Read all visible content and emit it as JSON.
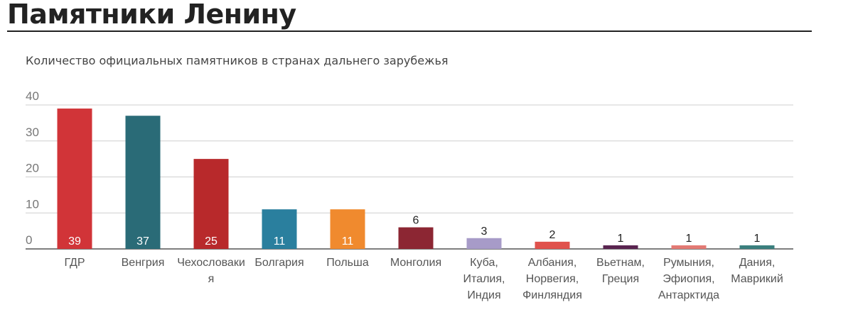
{
  "header": {
    "title": "Памятники Ленину",
    "subtitle": "Количество официальных памятников в странах дальнего зарубежья"
  },
  "chart_data": {
    "type": "bar",
    "title": "Памятники Ленину",
    "subtitle": "Количество официальных памятников в странах дальнего зарубежья",
    "xlabel": "",
    "ylabel": "",
    "ylim": [
      0,
      40
    ],
    "yticks": [
      "0",
      "10",
      "20",
      "30",
      "40"
    ],
    "grid": true,
    "categories": [
      [
        "ГДР"
      ],
      [
        "Венгрия"
      ],
      [
        "Чехословаки",
        "я"
      ],
      [
        "Болгария"
      ],
      [
        "Польша"
      ],
      [
        "Монголия"
      ],
      [
        "Куба,",
        "Италия,",
        "Индия"
      ],
      [
        "Албания,",
        "Норвегия,",
        "Финляндия"
      ],
      [
        "Вьетнам,",
        "Греция"
      ],
      [
        "Румыния,",
        "Эфиопия,",
        "Антарктида"
      ],
      [
        "Дания,",
        "Маврикий"
      ]
    ],
    "values": [
      39,
      37,
      25,
      11,
      11,
      6,
      3,
      2,
      1,
      1,
      1
    ],
    "colors": [
      "#d13438",
      "#2a6b77",
      "#b8292b",
      "#2a7f9e",
      "#f08a2e",
      "#8c2633",
      "#a79bc8",
      "#e0524d",
      "#5a2450",
      "#e37a74",
      "#3a7f7e"
    ],
    "labels_inside": [
      true,
      true,
      true,
      true,
      true,
      false,
      false,
      false,
      false,
      false,
      false
    ]
  }
}
